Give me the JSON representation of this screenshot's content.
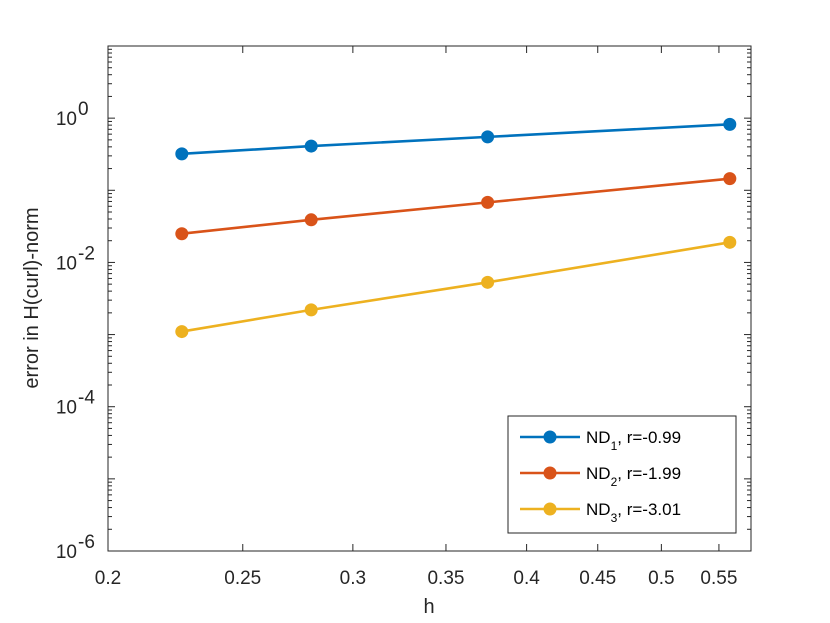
{
  "chart_data": {
    "type": "line",
    "xscale": "log",
    "yscale": "log",
    "xlabel": "h",
    "ylabel": "error in H(curl)-norm",
    "xlim": [
      0.2,
      0.58
    ],
    "ylim": [
      1e-06,
      10
    ],
    "x_ticks": [
      {
        "value": 0.2,
        "label": "0.2"
      },
      {
        "value": 0.25,
        "label": "0.25"
      },
      {
        "value": 0.3,
        "label": "0.3"
      },
      {
        "value": 0.35,
        "label": "0.35"
      },
      {
        "value": 0.4,
        "label": "0.4"
      },
      {
        "value": 0.45,
        "label": "0.45"
      },
      {
        "value": 0.5,
        "label": "0.5"
      },
      {
        "value": 0.55,
        "label": "0.55"
      }
    ],
    "y_ticks": [
      {
        "value": 1e-06,
        "base": "10",
        "exp": "-6"
      },
      {
        "value": 0.0001,
        "base": "10",
        "exp": "-4"
      },
      {
        "value": 0.01,
        "base": "10",
        "exp": "-2"
      },
      {
        "value": 1,
        "base": "10",
        "exp": "0"
      }
    ],
    "x": [
      0.226,
      0.28,
      0.375,
      0.56
    ],
    "series": [
      {
        "name": "ND",
        "sub": "1",
        "suffix": ", r=-0.99",
        "color": "#0072BD",
        "values": [
          0.32,
          0.41,
          0.55,
          0.82
        ]
      },
      {
        "name": "ND",
        "sub": "2",
        "suffix": ", r=-1.99",
        "color": "#D95319",
        "values": [
          0.025,
          0.039,
          0.068,
          0.145
        ]
      },
      {
        "name": "ND",
        "sub": "3",
        "suffix": ", r=-3.01",
        "color": "#EDB120",
        "values": [
          0.0011,
          0.0022,
          0.0053,
          0.019
        ]
      }
    ],
    "legend_position": "bottom-right",
    "grid": false
  }
}
